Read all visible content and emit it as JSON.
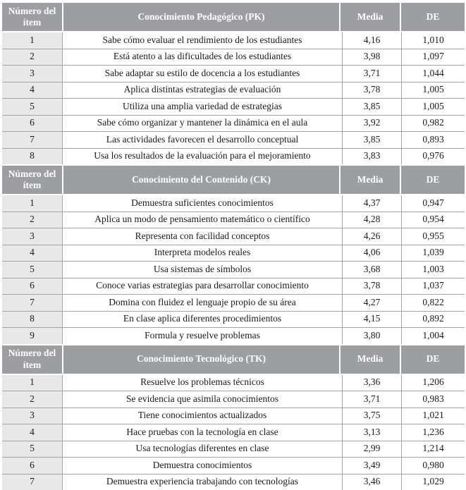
{
  "colors": {
    "header_bg": "#9C9EA1",
    "header_text": "#FFFFFF",
    "item_column_bg": "#E8E8E8",
    "border": "#A3A3A3",
    "body_text": "#1A1A1A"
  },
  "table": {
    "columns": {
      "item": "Número del ítem",
      "media": "Media",
      "de": "DE"
    },
    "sections": [
      {
        "title": "Conocimiento Pedagógico (PK)",
        "rows": [
          {
            "n": "1",
            "desc": "Sabe cómo evaluar el rendimiento de los estudiantes",
            "media": "4,16",
            "de": "1,010"
          },
          {
            "n": "2",
            "desc": "Está atento a las dificultades de los estudiantes",
            "media": "3,98",
            "de": "1,097"
          },
          {
            "n": "3",
            "desc": "Sabe adaptar su estilo de docencia a los estudiantes",
            "media": "3,71",
            "de": "1,044"
          },
          {
            "n": "4",
            "desc": "Aplica distintas estrategias de evaluación",
            "media": "3,78",
            "de": "1,005"
          },
          {
            "n": "5",
            "desc": "Utiliza una amplia variedad de estrategias",
            "media": "3,85",
            "de": "1,005"
          },
          {
            "n": "6",
            "desc": "Sabe cómo organizar y mantener la dinámica en el aula",
            "media": "3,92",
            "de": "0,982"
          },
          {
            "n": "7",
            "desc": "Las actividades favorecen el desarrollo conceptual",
            "media": "3,85",
            "de": "0,893"
          },
          {
            "n": "8",
            "desc": "Usa los resultados de la evaluación para el mejoramiento",
            "media": "3,83",
            "de": "0,976"
          }
        ]
      },
      {
        "title": "Conocimiento del Contenido (CK)",
        "rows": [
          {
            "n": "1",
            "desc": "Demuestra suficientes conocimientos",
            "media": "4,37",
            "de": "0,947"
          },
          {
            "n": "2",
            "desc": "Aplica un modo de pensamiento matemático o científico",
            "media": "4,28",
            "de": "0,954"
          },
          {
            "n": "3",
            "desc": "Representa con facilidad conceptos",
            "media": "4,26",
            "de": "0,955"
          },
          {
            "n": "4",
            "desc": "Interpreta modelos reales",
            "media": "4,06",
            "de": "1,039"
          },
          {
            "n": "5",
            "desc": "Usa sistemas de símbolos",
            "media": "3,68",
            "de": "1,003"
          },
          {
            "n": "6",
            "desc": "Conoce varias estrategias para desarrollar conocimiento",
            "media": "3,78",
            "de": "1,037"
          },
          {
            "n": "7",
            "desc": "Domina con fluidez el lenguaje propio de su área",
            "media": "4,27",
            "de": "0,822"
          },
          {
            "n": "8",
            "desc": "En clase aplica diferentes procedimientos",
            "media": "4,15",
            "de": "0,892"
          },
          {
            "n": "9",
            "desc": "Formula y resuelve problemas",
            "media": "3,80",
            "de": "1,004"
          }
        ]
      },
      {
        "title": "Conocimiento Tecnológico (TK)",
        "rows": [
          {
            "n": "1",
            "desc": "Resuelve los problemas técnicos",
            "media": "3,36",
            "de": "1,206"
          },
          {
            "n": "2",
            "desc": "Se evidencia que asimila conocimientos",
            "media": "3,71",
            "de": "0,983"
          },
          {
            "n": "3",
            "desc": "Tiene conocimientos actualizados",
            "media": "3,75",
            "de": "1,021"
          },
          {
            "n": "4",
            "desc": "Hace pruebas con la tecnología en clase",
            "media": "3,13",
            "de": "1,236"
          },
          {
            "n": "5",
            "desc": "Usa tecnologías diferentes en clase",
            "media": "2,99",
            "de": "1,214"
          },
          {
            "n": "6",
            "desc": "Demuestra conocimientos",
            "media": "3,49",
            "de": "0,980"
          },
          {
            "n": "7",
            "desc": "Demuestra experiencia trabajando con tecnologías",
            "media": "3,46",
            "de": "1,029"
          }
        ]
      }
    ]
  }
}
